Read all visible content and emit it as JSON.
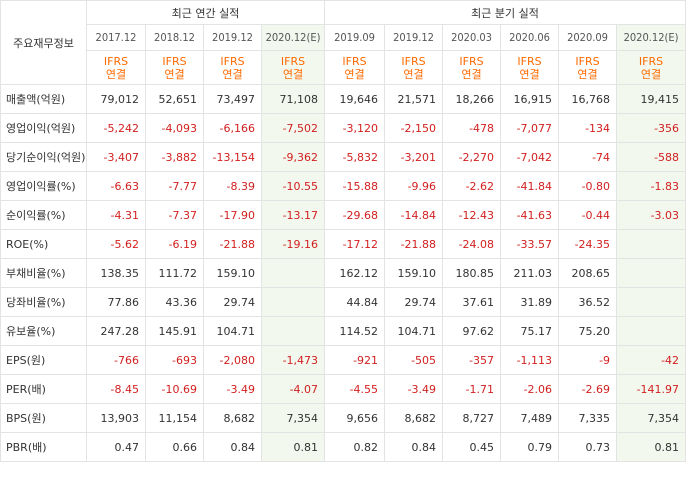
{
  "header": {
    "corner_label": "주요재무정보",
    "annual_group": "최근 연간 실적",
    "quarterly_group": "최근 분기 실적",
    "annual_periods": [
      "2017.12",
      "2018.12",
      "2019.12",
      "2020.12(E)"
    ],
    "quarterly_periods": [
      "2019.09",
      "2019.12",
      "2020.03",
      "2020.06",
      "2020.09",
      "2020.12(E)"
    ],
    "ifrs_top": "IFRS",
    "ifrs_bottom": "연결"
  },
  "rows": [
    {
      "label": "매출액(억원)",
      "annual": [
        "79,012",
        "52,651",
        "73,497",
        "71,108"
      ],
      "quarterly": [
        "19,646",
        "21,571",
        "18,266",
        "16,915",
        "16,768",
        "19,415"
      ]
    },
    {
      "label": "영업이익(억원)",
      "annual": [
        "-5,242",
        "-4,093",
        "-6,166",
        "-7,502"
      ],
      "quarterly": [
        "-3,120",
        "-2,150",
        "-478",
        "-7,077",
        "-134",
        "-356"
      ]
    },
    {
      "label": "당기순이익(억원)",
      "annual": [
        "-3,407",
        "-3,882",
        "-13,154",
        "-9,362"
      ],
      "quarterly": [
        "-5,832",
        "-3,201",
        "-2,270",
        "-7,042",
        "-74",
        "-588"
      ]
    },
    {
      "label": "영업이익률(%)",
      "annual": [
        "-6.63",
        "-7.77",
        "-8.39",
        "-10.55"
      ],
      "quarterly": [
        "-15.88",
        "-9.96",
        "-2.62",
        "-41.84",
        "-0.80",
        "-1.83"
      ]
    },
    {
      "label": "순이익률(%)",
      "annual": [
        "-4.31",
        "-7.37",
        "-17.90",
        "-13.17"
      ],
      "quarterly": [
        "-29.68",
        "-14.84",
        "-12.43",
        "-41.63",
        "-0.44",
        "-3.03"
      ]
    },
    {
      "label": "ROE(%)",
      "annual": [
        "-5.62",
        "-6.19",
        "-21.88",
        "-19.16"
      ],
      "quarterly": [
        "-17.12",
        "-21.88",
        "-24.08",
        "-33.57",
        "-24.35",
        ""
      ]
    },
    {
      "label": "부채비율(%)",
      "annual": [
        "138.35",
        "111.72",
        "159.10",
        ""
      ],
      "quarterly": [
        "162.12",
        "159.10",
        "180.85",
        "211.03",
        "208.65",
        ""
      ]
    },
    {
      "label": "당좌비율(%)",
      "annual": [
        "77.86",
        "43.36",
        "29.74",
        ""
      ],
      "quarterly": [
        "44.84",
        "29.74",
        "37.61",
        "31.89",
        "36.52",
        ""
      ]
    },
    {
      "label": "유보율(%)",
      "annual": [
        "247.28",
        "145.91",
        "104.71",
        ""
      ],
      "quarterly": [
        "114.52",
        "104.71",
        "97.62",
        "75.17",
        "75.20",
        ""
      ]
    },
    {
      "label": "EPS(원)",
      "annual": [
        "-766",
        "-693",
        "-2,080",
        "-1,473"
      ],
      "quarterly": [
        "-921",
        "-505",
        "-357",
        "-1,113",
        "-9",
        "-42"
      ]
    },
    {
      "label": "PER(배)",
      "annual": [
        "-8.45",
        "-10.69",
        "-3.49",
        "-4.07"
      ],
      "quarterly": [
        "-4.55",
        "-3.49",
        "-1.71",
        "-2.06",
        "-2.69",
        "-141.97"
      ]
    },
    {
      "label": "BPS(원)",
      "annual": [
        "13,903",
        "11,154",
        "8,682",
        "7,354"
      ],
      "quarterly": [
        "9,656",
        "8,682",
        "8,727",
        "7,489",
        "7,335",
        "7,354"
      ]
    },
    {
      "label": "PBR(배)",
      "annual": [
        "0.47",
        "0.66",
        "0.84",
        "0.81"
      ],
      "quarterly": [
        "0.82",
        "0.84",
        "0.45",
        "0.79",
        "0.73",
        "0.81"
      ]
    }
  ],
  "colors": {
    "negative": "#d21f1f",
    "ifrs": "#ff6a00",
    "estimate_bg": "#f2f8ee"
  }
}
